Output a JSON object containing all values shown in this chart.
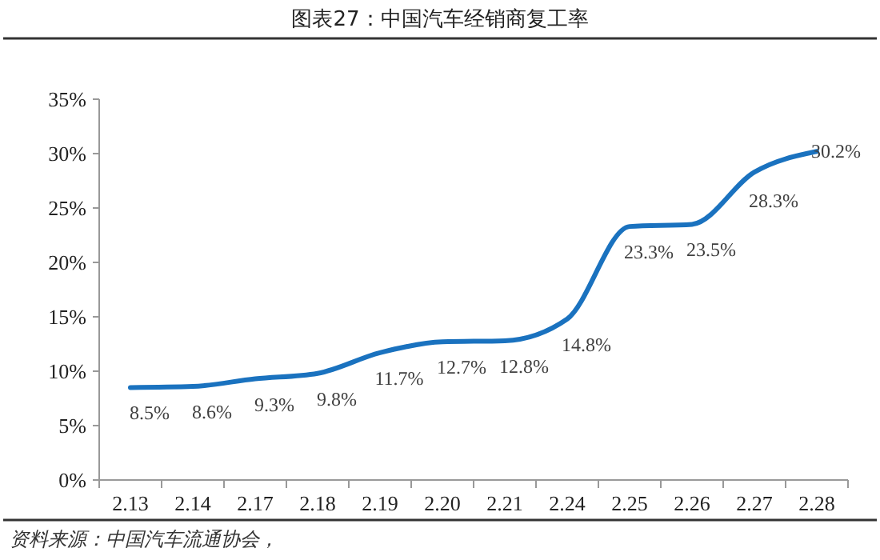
{
  "chart_data": {
    "type": "line",
    "title": "图表27：中国汽车经销商复工率",
    "categories": [
      "2.13",
      "2.14",
      "2.17",
      "2.18",
      "2.19",
      "2.20",
      "2.21",
      "2.24",
      "2.25",
      "2.26",
      "2.27",
      "2.28"
    ],
    "series": [
      {
        "color": "#1a72bf",
        "values": [
          8.5,
          8.6,
          9.3,
          9.8,
          11.7,
          12.7,
          12.8,
          14.8,
          23.3,
          23.5,
          28.3,
          30.2
        ],
        "value_labels": [
          "8.5%",
          "8.6%",
          "9.3%",
          "9.8%",
          "11.7%",
          "12.7%",
          "12.8%",
          "14.8%",
          "23.3%",
          "23.5%",
          "28.3%",
          "30.2%"
        ]
      }
    ],
    "ylim": [
      0,
      35
    ],
    "yticks": [
      {
        "value": 0,
        "label": "0%"
      },
      {
        "value": 5,
        "label": "5%"
      },
      {
        "value": 10,
        "label": "10%"
      },
      {
        "value": 15,
        "label": "15%"
      },
      {
        "value": 20,
        "label": "20%"
      },
      {
        "value": 25,
        "label": "25%"
      },
      {
        "value": 30,
        "label": "30%"
      },
      {
        "value": 35,
        "label": "35%"
      }
    ],
    "grid": false,
    "marker": "none",
    "line_style": "solid",
    "annotations": [
      "资料来源：中国汽车流通协会，"
    ]
  }
}
